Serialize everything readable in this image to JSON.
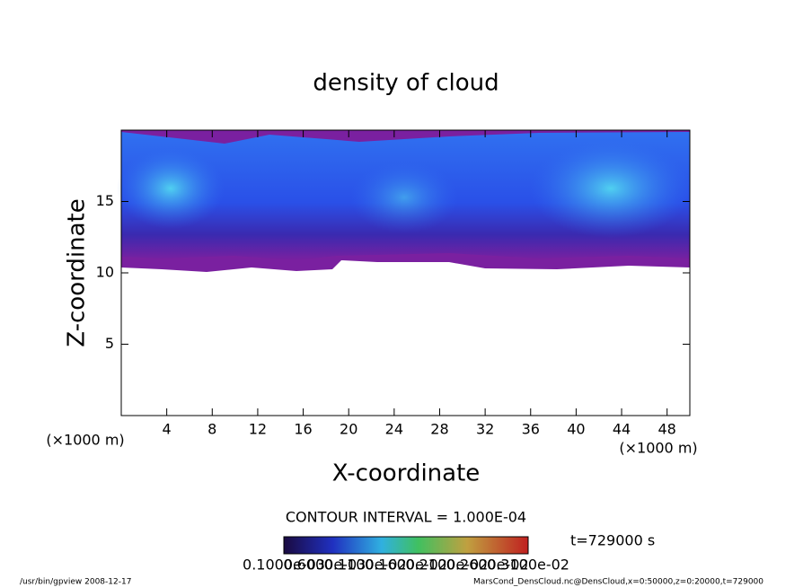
{
  "chart_data": {
    "type": "contour",
    "title": "density of cloud",
    "x_label": "X-coordinate",
    "y_label": "Z-coordinate",
    "x_unit": "(×1000 m)",
    "y_unit": "(×1000 m)",
    "xlim": [
      0,
      50
    ],
    "ylim": [
      0,
      20
    ],
    "xticks": [
      4,
      8,
      12,
      16,
      20,
      24,
      28,
      32,
      36,
      40,
      44,
      48
    ],
    "yticks": [
      5,
      10,
      15
    ],
    "contour_interval": "CONTOUR INTERVAL = 1.000E-04",
    "time_label": "t=729000 s",
    "colorbar_labels": [
      "0.1000e-03",
      "0.6000e-03",
      "0.1100e-02",
      "0.1600e-02",
      "0.2100e-02",
      "0.2600e-02",
      "0.3100e-02"
    ],
    "footer_left": "/usr/bin/gpview  2008-12-17",
    "footer_right": "MarsCond_DensCloud.nc@DensCloud,x=0:50000,z=0:20000,t=729000"
  }
}
